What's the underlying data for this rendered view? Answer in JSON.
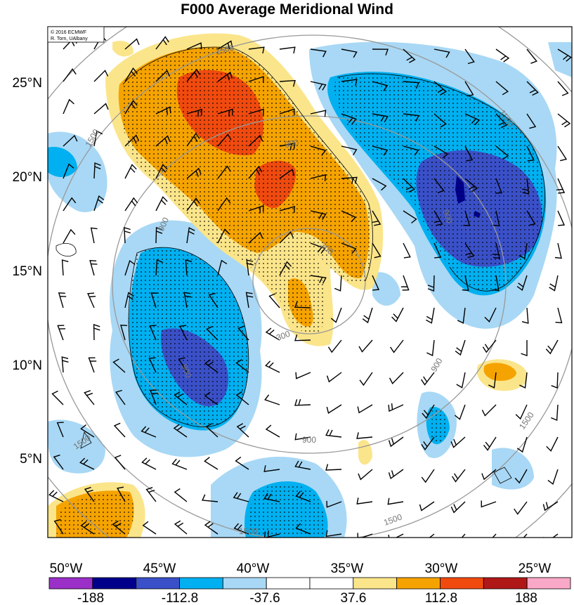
{
  "title": "F000 Average Meridional Wind",
  "credit": {
    "line1": "© 2016 ECMWF",
    "line2": "R. Torn, UAlbany"
  },
  "y_ticks": [
    "25°N",
    "20°N",
    "15°N",
    "10°N",
    "5°N"
  ],
  "x_ticks": [
    "50°W",
    "45°W",
    "40°W",
    "35°W",
    "30°W",
    "25°W"
  ],
  "contour_labels": [
    "1500",
    "900",
    "300"
  ],
  "colorbar": {
    "labels": [
      "-188",
      "-112.8",
      "-37.6",
      "37.6",
      "112.8",
      "188"
    ],
    "colors": [
      "#9b30c8",
      "#00008b",
      "#3a50c8",
      "#00b0f0",
      "#a8d8f5",
      "#ffffff",
      "#ffffff",
      "#fbe58a",
      "#f5a300",
      "#f04a0e",
      "#b01818",
      "#f9a8c8"
    ]
  },
  "shading_colors": {
    "light_blue": "#a8d8f5",
    "blue": "#00b0f0",
    "mid_blue": "#3a50c8",
    "dark_blue": "#00008b",
    "light_orange": "#fbe58a",
    "orange": "#f5a300",
    "red": "#f04a0e",
    "contour_gray": "#999999"
  }
}
